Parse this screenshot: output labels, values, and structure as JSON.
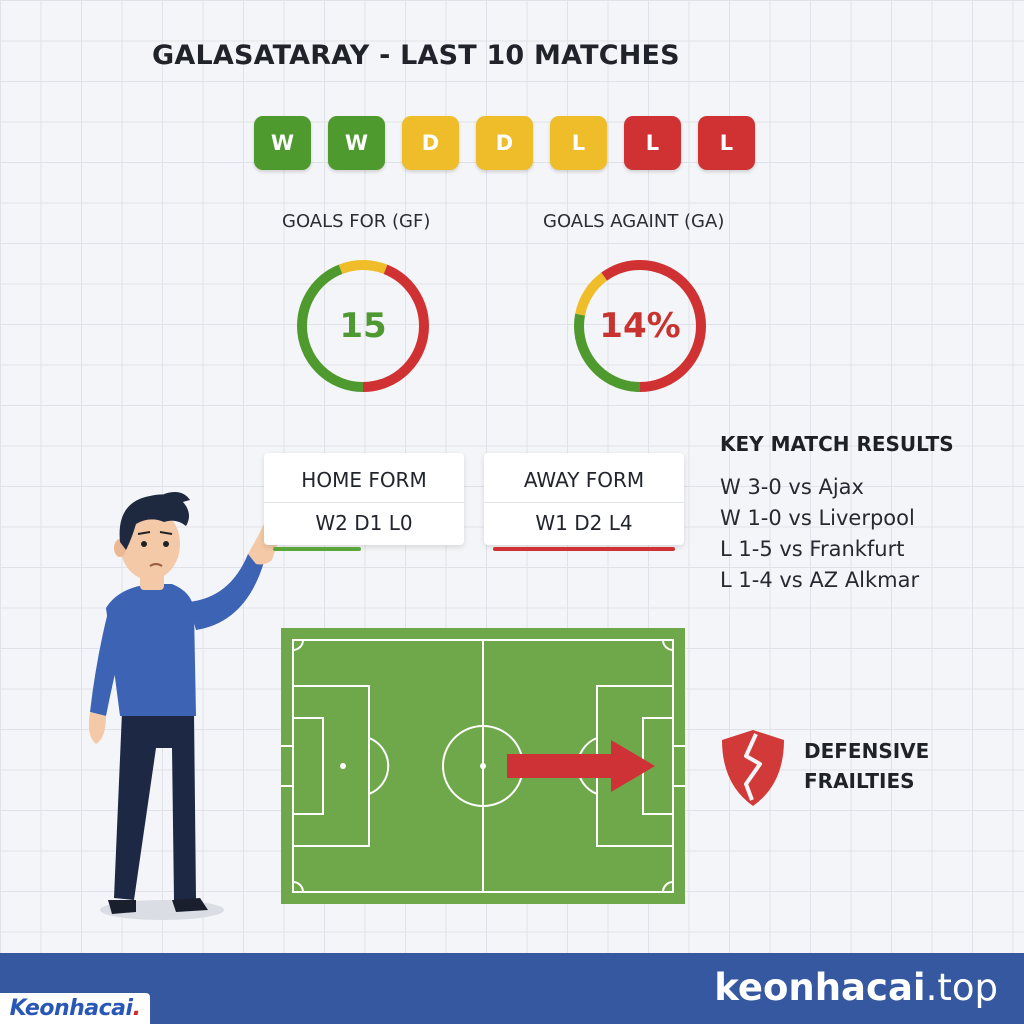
{
  "title": "GALASATARAY - LAST 10 MATCHES",
  "form_results": [
    {
      "label": "W",
      "color": "#4e9a2f"
    },
    {
      "label": "W",
      "color": "#4e9a2f"
    },
    {
      "label": "D",
      "color": "#f0bd2a"
    },
    {
      "label": "D",
      "color": "#f0bd2a"
    },
    {
      "label": "L",
      "color": "#f0bd2a"
    },
    {
      "label": "L",
      "color": "#d03233"
    },
    {
      "label": "L",
      "color": "#d03233"
    }
  ],
  "goals_for": {
    "label": "GOALS FOR (GF)",
    "value": "15",
    "value_color": "#4f9932",
    "ring": {
      "green": 0.44,
      "yellow": 0.12,
      "red": 0.44
    }
  },
  "goals_against": {
    "label": "GOALS AGAINT (GA)",
    "value": "14%",
    "value_color": "#c8332f",
    "ring": {
      "green": 0.28,
      "yellow": 0.12,
      "red": 0.6
    }
  },
  "home_form": {
    "title": "HOME FORM",
    "value": "W2 D1 L0",
    "line_color": "#5aa63a"
  },
  "away_form": {
    "title": "AWAY FORM",
    "value": "W1 D2 L4",
    "line_color": "#d03233"
  },
  "key_results": {
    "title": "KEY MATCH RESULTS",
    "items": [
      "W 3-0 vs Ajax",
      "W 1-0 vs Liverpool",
      "L 1-5 vs Frankfurt",
      "L 1-4 vs AZ Alkmar"
    ]
  },
  "frailties": {
    "line1": "DEFENSIVE",
    "line2": "FRAILTIES"
  },
  "footer": {
    "site_name": "keonhacai",
    "site_tld": ".top",
    "logo_text": "Keonhacai",
    "logo_dot": "."
  },
  "colors": {
    "green": "#4e9a2f",
    "yellow": "#f0bd2a",
    "red": "#d03233",
    "footer": "#3558a0"
  }
}
